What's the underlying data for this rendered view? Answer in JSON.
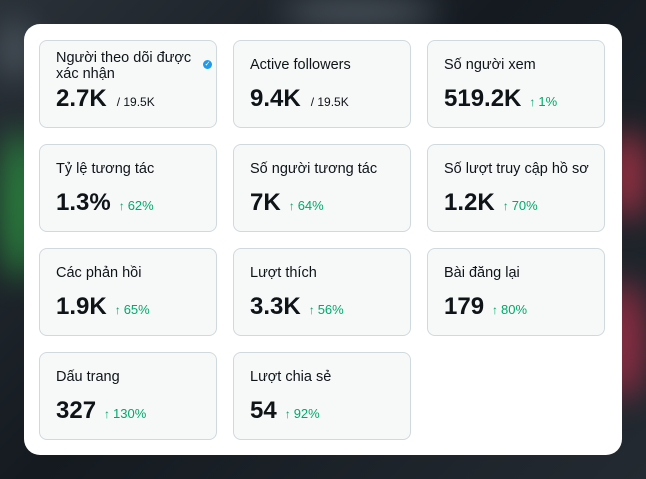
{
  "colors": {
    "accent_green": "#00a86b",
    "verified_blue": "#1d9bf0",
    "tile_bg": "#f7f9f9",
    "tile_border": "#cfd9de"
  },
  "metrics": [
    {
      "label": "Người theo dõi được xác nhận",
      "value": "2.7K",
      "total": "/ 19.5K",
      "verified_icon": "verified-badge-icon"
    },
    {
      "label": "Active followers",
      "value": "9.4K",
      "total": "/ 19.5K"
    },
    {
      "label": "Số người xem",
      "value": "519.2K",
      "change": "1%",
      "change_icon": "arrow-up-icon"
    },
    {
      "label": "Tỷ lệ tương tác",
      "value": "1.3%",
      "change": "62%",
      "change_icon": "arrow-up-icon"
    },
    {
      "label": "Số người tương tác",
      "value": "7K",
      "change": "64%",
      "change_icon": "arrow-up-icon"
    },
    {
      "label": "Số lượt truy cập hồ sơ",
      "value": "1.2K",
      "change": "70%",
      "change_icon": "arrow-up-icon"
    },
    {
      "label": "Các phản hồi",
      "value": "1.9K",
      "change": "65%",
      "change_icon": "arrow-up-icon"
    },
    {
      "label": "Lượt thích",
      "value": "3.3K",
      "change": "56%",
      "change_icon": "arrow-up-icon"
    },
    {
      "label": "Bài đăng lại",
      "value": "179",
      "change": "80%",
      "change_icon": "arrow-up-icon"
    },
    {
      "label": "Dấu trang",
      "value": "327",
      "change": "130%",
      "change_icon": "arrow-up-icon"
    },
    {
      "label": "Lượt chia sẻ",
      "value": "54",
      "change": "92%",
      "change_icon": "arrow-up-icon"
    }
  ]
}
